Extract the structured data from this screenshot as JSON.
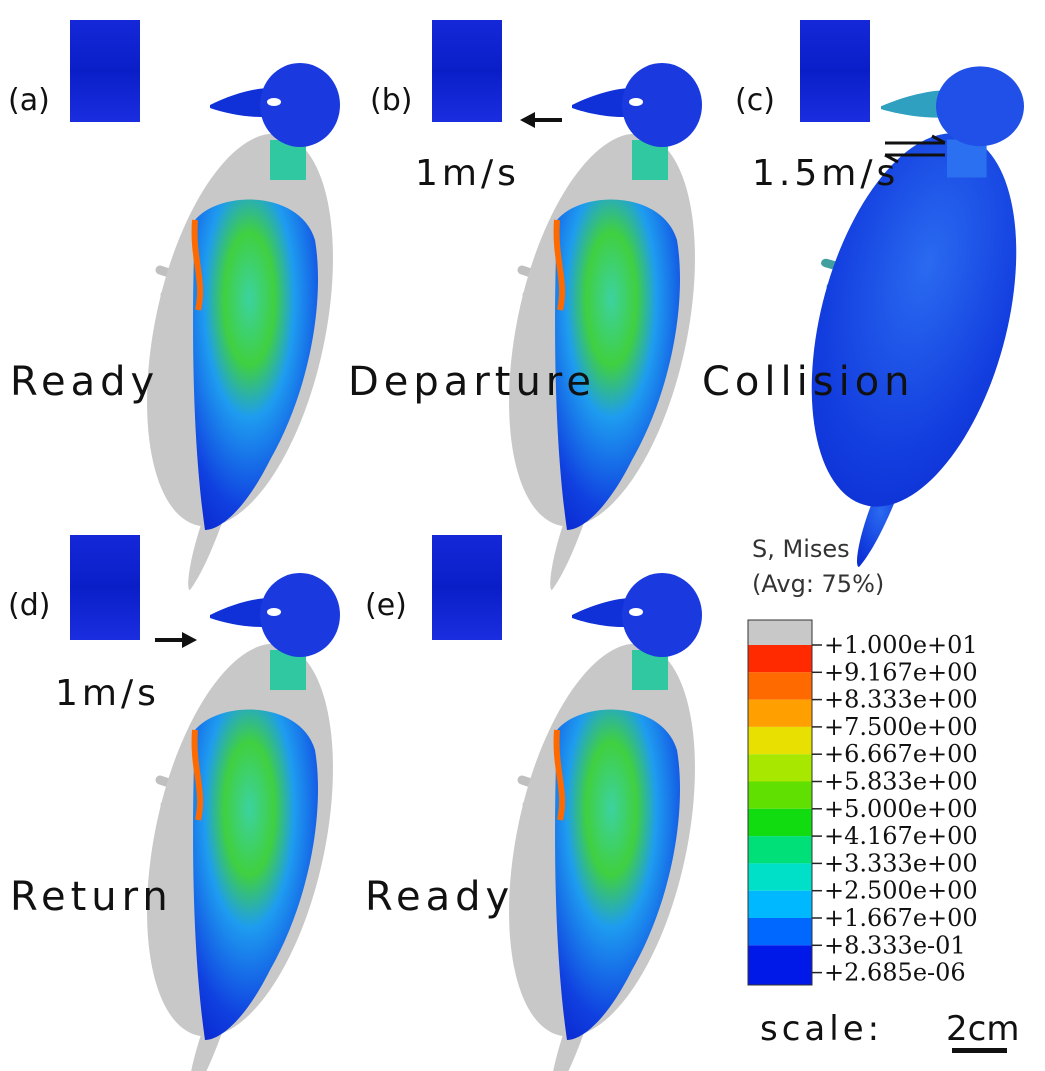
{
  "panels": [
    {
      "label": "(a)",
      "state": "Ready"
    },
    {
      "label": "(b)",
      "state": "Departure",
      "speed": "1m/s"
    },
    {
      "label": "(c)",
      "state": "Collision",
      "speed": "1.5m/s"
    },
    {
      "label": "(d)",
      "state": "Return",
      "speed": "1m/s"
    },
    {
      "label": "(e)",
      "state": "Ready"
    }
  ],
  "legend": {
    "title": "S, Mises",
    "subtitle": "(Avg: 75%)",
    "values": [
      "+1.000e+01",
      "+9.167e+00",
      "+8.333e+00",
      "+7.500e+00",
      "+6.667e+00",
      "+5.833e+00",
      "+5.000e+00",
      "+4.167e+00",
      "+3.333e+00",
      "+2.500e+00",
      "+1.667e+00",
      "+8.333e-01",
      "+2.685e-06"
    ]
  },
  "scale": {
    "label": "scale:",
    "length": "2cm"
  }
}
